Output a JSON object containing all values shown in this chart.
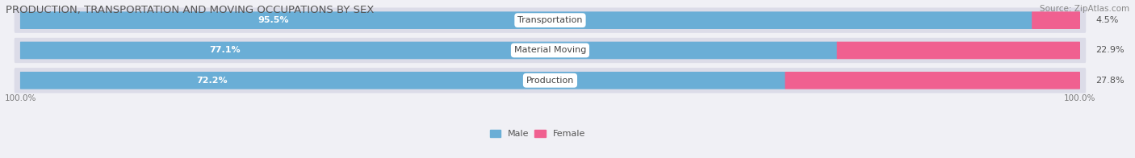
{
  "title": "PRODUCTION, TRANSPORTATION AND MOVING OCCUPATIONS BY SEX",
  "source": "Source: ZipAtlas.com",
  "categories": [
    "Transportation",
    "Material Moving",
    "Production"
  ],
  "male_values": [
    95.5,
    77.1,
    72.2
  ],
  "female_values": [
    4.5,
    22.9,
    27.8
  ],
  "male_color": "#6aaed6",
  "female_color": "#f06090",
  "male_light_color": "#aecce8",
  "female_light_color": "#f4a0b8",
  "bar_bg_color": "#dcdce8",
  "title_fontsize": 9.5,
  "source_fontsize": 7.5,
  "label_fontsize": 8,
  "value_fontsize": 8,
  "axis_label_fontsize": 7.5,
  "legend_fontsize": 8,
  "background_color": "#f0f0f5"
}
